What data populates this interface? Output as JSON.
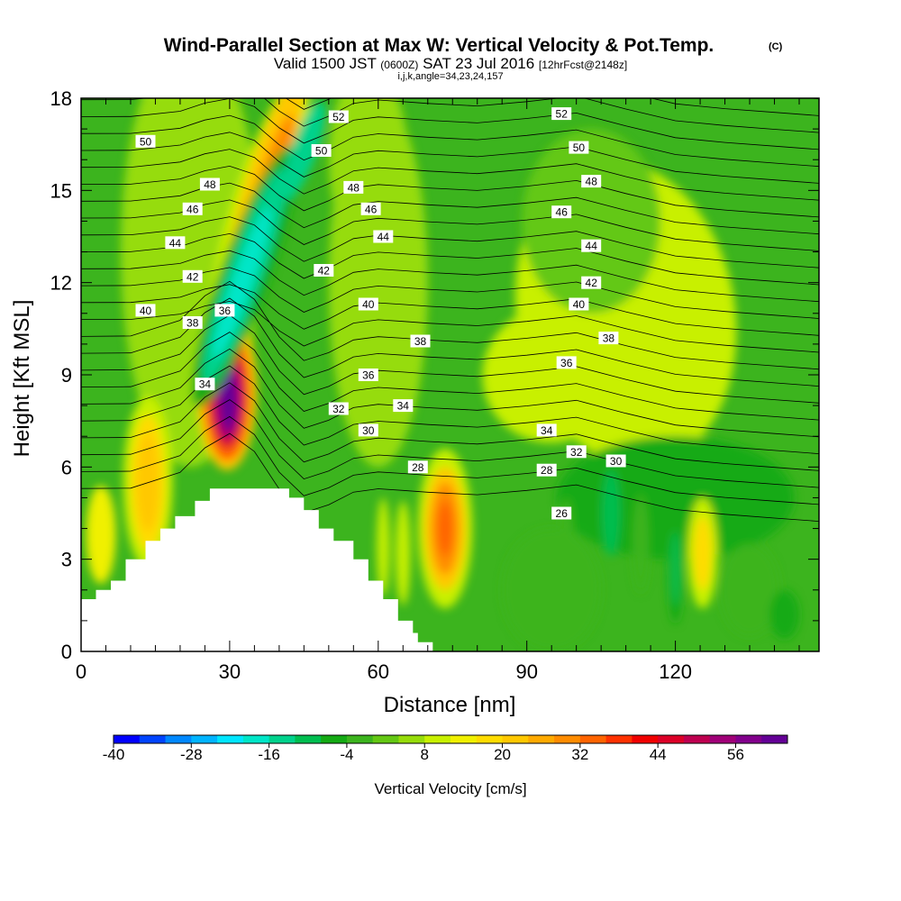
{
  "chart_data": {
    "type": "heatmap",
    "title": "Wind-Parallel Section at Max W: Vertical Velocity & Pot.Temp.",
    "title_mark": "(C)",
    "subtitle_parts": [
      "Valid 1500 JST",
      "(0600Z)",
      "SAT 23 Jul 2016",
      "[12hrFcst@2148z]"
    ],
    "subtitle2": "i,j,k,angle=34,23,24,157",
    "xlabel": "Distance [nm]",
    "ylabel": "Height [Kft MSL]",
    "xlim": [
      0,
      149
    ],
    "ylim": [
      0,
      18
    ],
    "x_ticks": [
      0,
      30,
      60,
      90,
      120
    ],
    "y_ticks": [
      0,
      3,
      6,
      9,
      12,
      15,
      18
    ],
    "colorbar": {
      "label": "Vertical Velocity [cm/s]",
      "min": -40,
      "max": 64,
      "step": 4,
      "tick_values": [
        -40,
        -28,
        -16,
        -4,
        8,
        20,
        32,
        44,
        56
      ],
      "colors": [
        "#0000ff",
        "#0044ff",
        "#0088ff",
        "#00b4ff",
        "#00e6ff",
        "#00e6c8",
        "#00d28c",
        "#00be50",
        "#14aa14",
        "#3cb41e",
        "#64c814",
        "#96dc0a",
        "#c8f000",
        "#f0f000",
        "#ffdc00",
        "#ffc800",
        "#ffaa00",
        "#ff8c00",
        "#ff6400",
        "#ff3200",
        "#f00000",
        "#dc0028",
        "#be0050",
        "#a00078",
        "#82008c",
        "#640096"
      ]
    },
    "terrain": [
      [
        0,
        0
      ],
      [
        0,
        1.7
      ],
      [
        3,
        1.7
      ],
      [
        3,
        2.0
      ],
      [
        6,
        2.0
      ],
      [
        6,
        2.3
      ],
      [
        9,
        2.3
      ],
      [
        9,
        3.0
      ],
      [
        13,
        3.0
      ],
      [
        13,
        3.6
      ],
      [
        16,
        3.6
      ],
      [
        16,
        4.0
      ],
      [
        19,
        4.0
      ],
      [
        19,
        4.4
      ],
      [
        23,
        4.4
      ],
      [
        23,
        4.9
      ],
      [
        26,
        4.9
      ],
      [
        26,
        5.3
      ],
      [
        42,
        5.3
      ],
      [
        42,
        5.0
      ],
      [
        45,
        5.0
      ],
      [
        45,
        4.6
      ],
      [
        48,
        4.6
      ],
      [
        48,
        4.0
      ],
      [
        51,
        4.0
      ],
      [
        51,
        3.6
      ],
      [
        55,
        3.6
      ],
      [
        55,
        3.0
      ],
      [
        58,
        3.0
      ],
      [
        58,
        2.3
      ],
      [
        61,
        2.3
      ],
      [
        61,
        1.7
      ],
      [
        64,
        1.7
      ],
      [
        64,
        1.0
      ],
      [
        67,
        1.0
      ],
      [
        67,
        0.6
      ],
      [
        68,
        0.6
      ],
      [
        68,
        0.3
      ],
      [
        71,
        0.3
      ],
      [
        71,
        0
      ],
      [
        0,
        0
      ]
    ],
    "vertical_velocity_features": [
      {
        "name": "strong updraft core",
        "x": 29.5,
        "y": 8.3,
        "value": 60
      },
      {
        "name": "upper-level updraft band",
        "x": 37.5,
        "y": 15.0,
        "value": 28
      },
      {
        "name": "upper-level downdraft band",
        "x": 32.5,
        "y": 12.0,
        "value": -20
      },
      {
        "name": "lower updraft",
        "x": 73.5,
        "y": 4.0,
        "value": 30
      },
      {
        "name": "left updraft",
        "x": 13.5,
        "y": 5.5,
        "value": 20
      },
      {
        "name": "updraft",
        "x": 125.5,
        "y": 3.2,
        "value": 18
      },
      {
        "name": "downdraft",
        "x": 120,
        "y": 2.7,
        "value": -12
      },
      {
        "name": "downdraft",
        "x": 107,
        "y": 4.5,
        "value": -10
      }
    ],
    "theta_contour_labels": [
      {
        "value": "52",
        "x": 52,
        "y": 17.4
      },
      {
        "value": "52",
        "x": 97,
        "y": 17.5
      },
      {
        "value": "50",
        "x": 13,
        "y": 16.6
      },
      {
        "value": "50",
        "x": 48.5,
        "y": 16.3
      },
      {
        "value": "50",
        "x": 100.5,
        "y": 16.4
      },
      {
        "value": "48",
        "x": 26,
        "y": 15.2
      },
      {
        "value": "48",
        "x": 55,
        "y": 15.1
      },
      {
        "value": "48",
        "x": 103,
        "y": 15.3
      },
      {
        "value": "46",
        "x": 22.5,
        "y": 14.4
      },
      {
        "value": "46",
        "x": 58.5,
        "y": 14.4
      },
      {
        "value": "46",
        "x": 97,
        "y": 14.3
      },
      {
        "value": "44",
        "x": 19,
        "y": 13.3
      },
      {
        "value": "44",
        "x": 61,
        "y": 13.5
      },
      {
        "value": "44",
        "x": 103,
        "y": 13.2
      },
      {
        "value": "42",
        "x": 22.5,
        "y": 12.2
      },
      {
        "value": "42",
        "x": 49,
        "y": 12.4
      },
      {
        "value": "42",
        "x": 103,
        "y": 12.0
      },
      {
        "value": "40",
        "x": 13,
        "y": 11.1
      },
      {
        "value": "40",
        "x": 58,
        "y": 11.3
      },
      {
        "value": "40",
        "x": 100.5,
        "y": 11.3
      },
      {
        "value": "38",
        "x": 22.5,
        "y": 10.7
      },
      {
        "value": "38",
        "x": 68.5,
        "y": 10.1
      },
      {
        "value": "38",
        "x": 106.5,
        "y": 10.2
      },
      {
        "value": "36",
        "x": 29,
        "y": 11.1
      },
      {
        "value": "36",
        "x": 58,
        "y": 9.0
      },
      {
        "value": "36",
        "x": 98,
        "y": 9.4
      },
      {
        "value": "34",
        "x": 25,
        "y": 8.7
      },
      {
        "value": "34",
        "x": 65,
        "y": 8.0
      },
      {
        "value": "34",
        "x": 94,
        "y": 7.2
      },
      {
        "value": "32",
        "x": 52,
        "y": 7.9
      },
      {
        "value": "32",
        "x": 100,
        "y": 6.5
      },
      {
        "value": "30",
        "x": 58,
        "y": 7.2
      },
      {
        "value": "30",
        "x": 108,
        "y": 6.2
      },
      {
        "value": "28",
        "x": 68,
        "y": 6.0
      },
      {
        "value": "28",
        "x": 94,
        "y": 5.9
      },
      {
        "value": "26",
        "x": 97,
        "y": 4.5
      }
    ]
  }
}
